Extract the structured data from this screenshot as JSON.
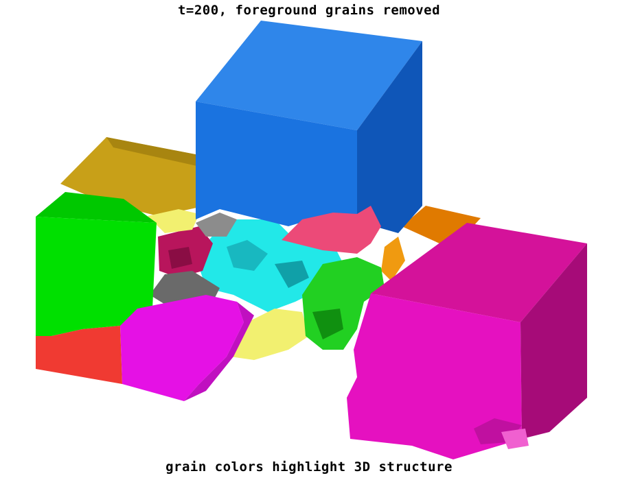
{
  "title": "t=200, foreground grains removed",
  "subtitle": "grain colors highlight 3D structure",
  "colors": {
    "background": "#ffffff",
    "text": "#000000",
    "blue": "#1a73e0",
    "blue_side": "#0f56b8",
    "magenta": "#d4129a",
    "magenta_side": "#a60b78",
    "green": "#00e000",
    "red": "#f03a32",
    "pink": "#e511e5",
    "ochre": "#c8a018",
    "orange": "#e07a00",
    "cyan": "#22e8e8",
    "maroon": "#b8155c",
    "grey": "#6a6a6a",
    "yellow": "#f2f070",
    "salmon": "#ec4a78",
    "dark_green": "#109010"
  }
}
